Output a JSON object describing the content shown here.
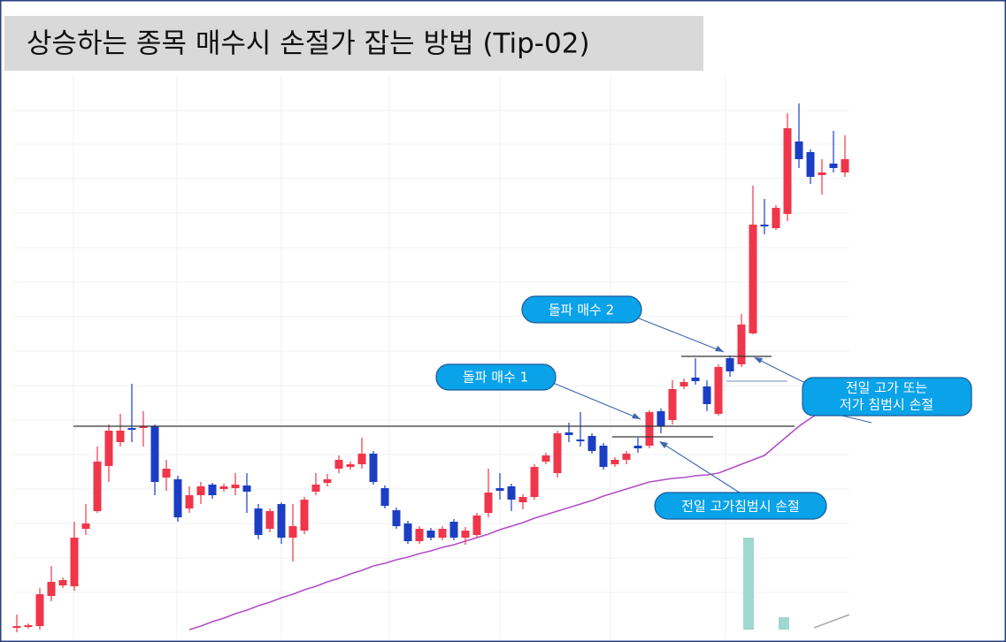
{
  "chart_data": {
    "type": "candlestick",
    "title": "상승하는 종목 매수시 손절가 잡는 방법 (Tip-02)",
    "up_color": "#f0364a",
    "down_color": "#1b3ec4",
    "ylim": [
      0,
      640
    ],
    "open": [
      16,
      17,
      18,
      52,
      64,
      63,
      128,
      148,
      199,
      226,
      242,
      242,
      244,
      186,
      184,
      151,
      166,
      178,
      173,
      174,
      177,
      151,
      128,
      156,
      118,
      126,
      170,
      180,
      196,
      198,
      201,
      213,
      174,
      149,
      134,
      114,
      126,
      118,
      136,
      118,
      121,
      146,
      174,
      176,
      158,
      164,
      204,
      191,
      237,
      229,
      233,
      222,
      201,
      206,
      222,
      222,
      261,
      251,
      289,
      299,
      289,
      258,
      321,
      314,
      349,
      472,
      468,
      484,
      566,
      554,
      528,
      541,
      531
    ],
    "high": [
      31,
      21,
      61,
      86,
      73,
      136,
      156,
      221,
      246,
      258,
      292,
      261,
      246,
      206,
      188,
      176,
      181,
      180,
      179,
      191,
      191,
      156,
      151,
      158,
      156,
      164,
      191,
      190,
      211,
      204,
      231,
      216,
      177,
      152,
      137,
      131,
      129,
      131,
      139,
      130,
      146,
      196,
      191,
      179,
      167,
      201,
      214,
      239,
      248,
      260,
      236,
      225,
      209,
      216,
      231,
      262,
      264,
      296,
      298,
      321,
      296,
      314,
      324,
      371,
      516,
      501,
      494,
      598,
      609,
      557,
      546,
      578,
      573
    ],
    "low": [
      11,
      15,
      14,
      46,
      61,
      58,
      121,
      146,
      181,
      221,
      226,
      221,
      166,
      171,
      136,
      146,
      156,
      162,
      170,
      166,
      146,
      116,
      124,
      111,
      91,
      122,
      166,
      176,
      191,
      195,
      196,
      178,
      151,
      128,
      111,
      111,
      115,
      115,
      115,
      110,
      118,
      141,
      161,
      148,
      150,
      161,
      201,
      186,
      226,
      221,
      213,
      195,
      198,
      201,
      214,
      219,
      236,
      246,
      286,
      291,
      261,
      256,
      300,
      311,
      348,
      461,
      466,
      476,
      536,
      518,
      506,
      531,
      526
    ],
    "close": [
      18,
      19,
      54,
      68,
      70,
      118,
      134,
      204,
      239,
      239,
      240,
      244,
      181,
      196,
      141,
      166,
      176,
      166,
      176,
      178,
      170,
      121,
      148,
      118,
      131,
      161,
      178,
      184,
      206,
      201,
      213,
      181,
      154,
      131,
      114,
      128,
      118,
      128,
      118,
      126,
      143,
      169,
      171,
      161,
      164,
      198,
      211,
      236,
      234,
      227,
      216,
      198,
      206,
      213,
      219,
      260,
      244,
      286,
      294,
      295,
      269,
      311,
      306,
      359,
      472,
      470,
      491,
      581,
      546,
      526,
      531,
      536,
      546
    ],
    "ma": {
      "color": "#b24fc6",
      "values": [
        null,
        null,
        null,
        null,
        null,
        null,
        null,
        null,
        null,
        null,
        null,
        null,
        null,
        null,
        null,
        14,
        18,
        23,
        27,
        32,
        36,
        41,
        45,
        50,
        54,
        59,
        63,
        68,
        72,
        77,
        81,
        86,
        89,
        93,
        96,
        100,
        103,
        107,
        110,
        114,
        118,
        122,
        127,
        131,
        135,
        140,
        144,
        148,
        152,
        156,
        160,
        165,
        169,
        173,
        177,
        181,
        183,
        185,
        186,
        188,
        189,
        191,
        196,
        201,
        206,
        211,
        222,
        233,
        244,
        253,
        261,
        null,
        null
      ]
    },
    "annotations": [
      {
        "text": "돌파 매수 2"
      },
      {
        "text": "돌파 매수 1"
      },
      {
        "lines": [
          "전일 고가 또는",
          "저가 침범시 손절"
        ]
      },
      {
        "text": "전일 고가침범시 손절"
      }
    ]
  }
}
